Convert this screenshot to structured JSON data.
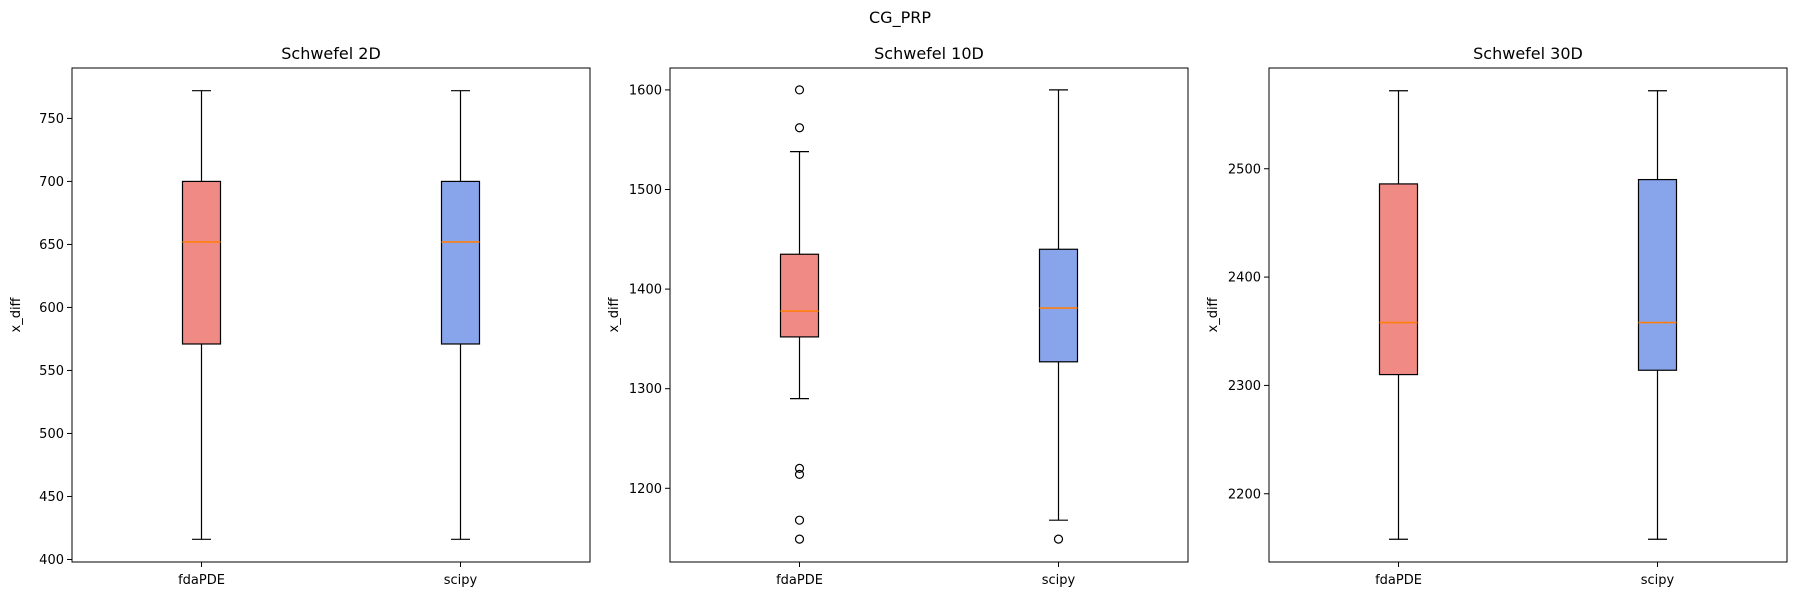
{
  "figure": {
    "suptitle": "CG_PRP"
  },
  "chart_data": [
    {
      "type": "box",
      "title": "Schwefel 2D",
      "xlabel": "",
      "ylabel": "x_diff",
      "categories": [
        "fdaPDE",
        "scipy"
      ],
      "ylim": [
        398,
        790
      ],
      "yticks": [
        400,
        450,
        500,
        550,
        600,
        650,
        700,
        750
      ],
      "grid": false,
      "colors": [
        "#f08a84",
        "#88a5eb"
      ],
      "median_color": "#ff7f0e",
      "boxes": [
        {
          "name": "fdaPDE",
          "whisker_low": 416,
          "q1": 571,
          "median": 652,
          "q3": 700,
          "whisker_high": 772,
          "outliers": []
        },
        {
          "name": "scipy",
          "whisker_low": 416,
          "q1": 571,
          "median": 652,
          "q3": 700,
          "whisker_high": 772,
          "outliers": []
        }
      ]
    },
    {
      "type": "box",
      "title": "Schwefel 10D",
      "xlabel": "",
      "ylabel": "x_diff",
      "categories": [
        "fdaPDE",
        "scipy"
      ],
      "ylim": [
        1126,
        1622
      ],
      "yticks": [
        1200,
        1300,
        1400,
        1500,
        1600
      ],
      "grid": false,
      "colors": [
        "#f08a84",
        "#88a5eb"
      ],
      "median_color": "#ff7f0e",
      "boxes": [
        {
          "name": "fdaPDE",
          "whisker_low": 1290,
          "q1": 1352,
          "median": 1378,
          "q3": 1435,
          "whisker_high": 1538,
          "outliers": [
            1600,
            1562,
            1220,
            1214,
            1168,
            1149
          ]
        },
        {
          "name": "scipy",
          "whisker_low": 1168,
          "q1": 1327,
          "median": 1381,
          "q3": 1440,
          "whisker_high": 1600,
          "outliers": [
            1149
          ]
        }
      ]
    },
    {
      "type": "box",
      "title": "Schwefel 30D",
      "xlabel": "",
      "ylabel": "x_diff",
      "categories": [
        "fdaPDE",
        "scipy"
      ],
      "ylim": [
        2137,
        2593
      ],
      "yticks": [
        2200,
        2300,
        2400,
        2500
      ],
      "grid": false,
      "colors": [
        "#f08a84",
        "#88a5eb"
      ],
      "median_color": "#ff7f0e",
      "boxes": [
        {
          "name": "fdaPDE",
          "whisker_low": 2158,
          "q1": 2310,
          "median": 2358,
          "q3": 2486,
          "whisker_high": 2572,
          "outliers": []
        },
        {
          "name": "scipy",
          "whisker_low": 2158,
          "q1": 2314,
          "median": 2358,
          "q3": 2490,
          "whisker_high": 2572,
          "outliers": []
        }
      ]
    }
  ]
}
